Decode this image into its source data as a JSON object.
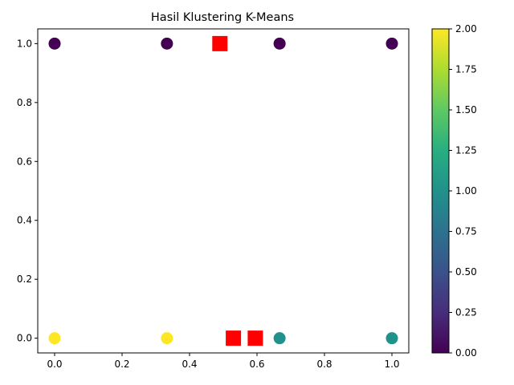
{
  "chart_data": {
    "type": "scatter",
    "title": "Hasil Klustering K-Means",
    "xlabel": "",
    "ylabel": "",
    "xlim": [
      -0.05,
      1.05
    ],
    "ylim": [
      -0.05,
      1.05
    ],
    "xticks": [
      "0.0",
      "0.2",
      "0.4",
      "0.6",
      "0.8",
      "1.0"
    ],
    "yticks": [
      "0.0",
      "0.2",
      "0.4",
      "0.6",
      "0.8",
      "1.0"
    ],
    "grid": false,
    "colormap": "viridis",
    "colorbar": {
      "range": [
        0.0,
        2.0
      ],
      "ticks": [
        "0.00",
        "0.25",
        "0.50",
        "0.75",
        "1.00",
        "1.25",
        "1.50",
        "1.75",
        "2.00"
      ]
    },
    "points": [
      {
        "x": 0.0,
        "y": 1.0,
        "cluster": 0
      },
      {
        "x": 0.333,
        "y": 1.0,
        "cluster": 0
      },
      {
        "x": 0.667,
        "y": 1.0,
        "cluster": 0
      },
      {
        "x": 1.0,
        "y": 1.0,
        "cluster": 0
      },
      {
        "x": 0.0,
        "y": 0.0,
        "cluster": 2
      },
      {
        "x": 0.333,
        "y": 0.0,
        "cluster": 2
      },
      {
        "x": 0.667,
        "y": 0.0,
        "cluster": 1
      },
      {
        "x": 1.0,
        "y": 0.0,
        "cluster": 1
      }
    ],
    "centroids": [
      {
        "x": 0.49,
        "y": 1.0
      },
      {
        "x": 0.53,
        "y": 0.0
      },
      {
        "x": 0.595,
        "y": 0.0
      }
    ],
    "centroid_color": "#ff0000",
    "cluster_colors": [
      "#440154",
      "#21918c",
      "#fde725"
    ]
  }
}
